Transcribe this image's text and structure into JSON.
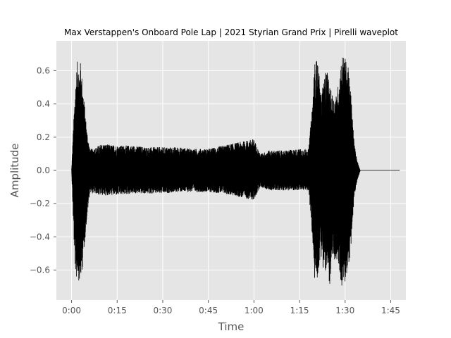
{
  "chart_data": {
    "type": "waveform",
    "title": "Max Verstappen's Onboard Pole Lap | 2021 Styrian Grand Prix | Pirelli waveplot",
    "xlabel": "Time",
    "ylabel": "Amplitude",
    "x_unit": "seconds",
    "xlim": [
      -5,
      110
    ],
    "ylim": [
      -0.78,
      0.78
    ],
    "x_ticks": [
      {
        "value": 0,
        "label": "0:00"
      },
      {
        "value": 15,
        "label": "0:15"
      },
      {
        "value": 30,
        "label": "0:30"
      },
      {
        "value": 45,
        "label": "0:45"
      },
      {
        "value": 60,
        "label": "1:00"
      },
      {
        "value": 75,
        "label": "1:15"
      },
      {
        "value": 90,
        "label": "1:30"
      },
      {
        "value": 105,
        "label": "1:45"
      }
    ],
    "y_ticks": [
      {
        "value": 0.6,
        "label": "0.6"
      },
      {
        "value": 0.4,
        "label": "0.4"
      },
      {
        "value": 0.2,
        "label": "0.2"
      },
      {
        "value": 0.0,
        "label": "0.0"
      },
      {
        "value": -0.2,
        "label": "−0.2"
      },
      {
        "value": -0.4,
        "label": "−0.4"
      },
      {
        "value": -0.6,
        "label": "−0.6"
      }
    ],
    "grid": true,
    "background": "#e5e5e5",
    "line_color": "#000000",
    "envelope": {
      "time": [
        0,
        0.5,
        1,
        1.5,
        2,
        2.5,
        3,
        3.5,
        4,
        5,
        6,
        7,
        8,
        9,
        10,
        15,
        20,
        25,
        30,
        35,
        40,
        45,
        50,
        55,
        60,
        62,
        65,
        70,
        75,
        78,
        79,
        80,
        81,
        82,
        83,
        84,
        85,
        86,
        87,
        88,
        89,
        90,
        91,
        92,
        93,
        94,
        95,
        105,
        108
      ],
      "max": [
        0.0,
        0.22,
        0.43,
        0.58,
        0.68,
        0.62,
        0.66,
        0.55,
        0.45,
        0.25,
        0.13,
        0.13,
        0.14,
        0.15,
        0.16,
        0.15,
        0.15,
        0.14,
        0.14,
        0.14,
        0.13,
        0.13,
        0.15,
        0.17,
        0.19,
        0.1,
        0.12,
        0.12,
        0.13,
        0.13,
        0.35,
        0.65,
        0.68,
        0.45,
        0.55,
        0.62,
        0.5,
        0.45,
        0.45,
        0.55,
        0.7,
        0.68,
        0.62,
        0.45,
        0.16,
        0.06,
        0.0,
        0.0,
        0.0
      ],
      "min": [
        0.0,
        -0.28,
        -0.55,
        -0.66,
        -0.62,
        -0.68,
        -0.66,
        -0.6,
        -0.5,
        -0.3,
        -0.13,
        -0.14,
        -0.14,
        -0.15,
        -0.15,
        -0.15,
        -0.14,
        -0.14,
        -0.14,
        -0.13,
        -0.13,
        -0.13,
        -0.14,
        -0.16,
        -0.18,
        -0.1,
        -0.12,
        -0.12,
        -0.12,
        -0.12,
        -0.35,
        -0.67,
        -0.65,
        -0.5,
        -0.62,
        -0.62,
        -0.69,
        -0.55,
        -0.55,
        -0.6,
        -0.71,
        -0.68,
        -0.6,
        -0.45,
        -0.16,
        -0.06,
        0.0,
        0.0,
        0.0
      ]
    }
  }
}
